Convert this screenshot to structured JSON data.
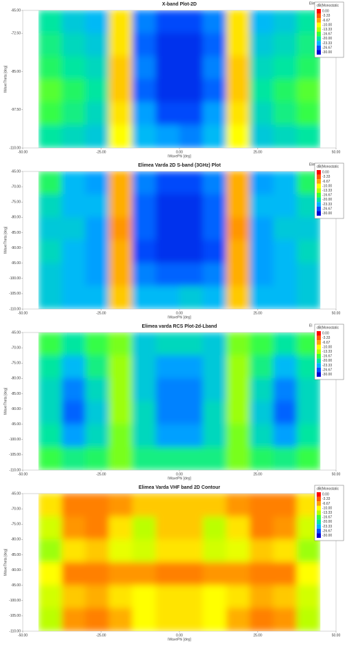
{
  "chart_data": [
    {
      "type": "heatmap",
      "title": "X-band Plot-2D",
      "corner_label": "Elime",
      "xlabel": "IWavePhi [deg]",
      "ylabel": "IWaveTheta [deg]",
      "legend_title": "dB(Monostatic",
      "colorbar_ticks": [
        {
          "value": 0,
          "label": "0.00"
        },
        -3.33,
        -6.67,
        {
          "value": -10,
          "label": "-10.00"
        },
        -13.33,
        -16.67,
        {
          "value": -20,
          "label": "-20.00"
        },
        -23.33,
        -26.67,
        {
          "value": -30,
          "label": "-30.00"
        }
      ],
      "colorbar_colors": [
        "#ff0000",
        "#ff5a00",
        "#ffa500",
        "#ffff00",
        "#b4ff00",
        "#3cff3c",
        "#00e6a0",
        "#00b4ff",
        "#0050ff",
        "#0000d2"
      ],
      "xlim": [
        -50,
        50
      ],
      "ylim": [
        -110,
        -65
      ],
      "xticks": [
        {
          "value": -50,
          "label": "-50.00"
        },
        {
          "value": -25,
          "label": "-25.00"
        },
        {
          "value": 0,
          "label": "0.00"
        },
        {
          "value": 25,
          "label": "25.00"
        },
        {
          "value": 50,
          "label": "50.00"
        }
      ],
      "yticks": [
        {
          "value": -65,
          "label": "-65.00"
        },
        {
          "value": -72.5,
          "label": "-72.50"
        },
        {
          "value": -85,
          "label": "-85.00"
        },
        {
          "value": -97.5,
          "label": "-97.50"
        },
        {
          "value": -110,
          "label": "-110.00"
        }
      ],
      "x": [
        -41.25,
        -33.75,
        -26.25,
        -18.75,
        -11.25,
        -3.75,
        3.75,
        11.25,
        18.75,
        26.25,
        33.75,
        41.25
      ],
      "y": [
        -68.75,
        -76.25,
        -83.75,
        -91.25,
        -98.75,
        -106.25
      ],
      "z": [
        [
          -20,
          -22,
          -23,
          -9,
          -25,
          -27,
          -27,
          -25,
          -9,
          -23,
          -22,
          -20
        ],
        [
          -19,
          -21,
          -22,
          -9,
          -26,
          -28,
          -28,
          -26,
          -9,
          -22,
          -21,
          -19
        ],
        [
          -18,
          -20,
          -21,
          -8,
          -25,
          -28,
          -28,
          -25,
          -8,
          -21,
          -20,
          -18
        ],
        [
          -16,
          -18,
          -20,
          -8,
          -26,
          -28,
          -28,
          -26,
          -8,
          -20,
          -18,
          -16
        ],
        [
          -17,
          -19,
          -21,
          -9,
          -24,
          -27,
          -27,
          -24,
          -9,
          -21,
          -19,
          -17
        ],
        [
          -20,
          -21,
          -22,
          -10,
          -23,
          -24,
          -25,
          -23,
          -10,
          -22,
          -21,
          -20
        ]
      ]
    },
    {
      "type": "heatmap",
      "title": "Elimea Varda 2D S-band (3GHz) Plot",
      "corner_label": "Elimea",
      "xlabel": "IWavePhi [deg]",
      "ylabel": "IWaveTheta [deg]",
      "legend_title": "dB(Monostatic",
      "colorbar_ticks": [
        {
          "value": 0,
          "label": "0.00"
        },
        -3.33,
        -6.67,
        {
          "value": -10,
          "label": "-10.00"
        },
        -13.33,
        -16.67,
        {
          "value": -20,
          "label": "-20.00"
        },
        -23.33,
        -26.67,
        {
          "value": -30,
          "label": "-30.00"
        }
      ],
      "colorbar_colors": [
        "#ff0000",
        "#ff5a00",
        "#ffa500",
        "#ffff00",
        "#b4ff00",
        "#3cff3c",
        "#00e6a0",
        "#00b4ff",
        "#0050ff",
        "#0000d2"
      ],
      "xlim": [
        -50,
        50
      ],
      "ylim": [
        -110,
        -65
      ],
      "xticks": [
        {
          "value": -50,
          "label": "-50.00"
        },
        {
          "value": -25,
          "label": "-25.00"
        },
        {
          "value": 0,
          "label": "0.00"
        },
        {
          "value": 25,
          "label": "25.00"
        },
        {
          "value": 50,
          "label": "50.00"
        }
      ],
      "yticks": [
        {
          "value": -65,
          "label": "-65.00"
        },
        {
          "value": -70,
          "label": "-70.00"
        },
        {
          "value": -75,
          "label": "-75.00"
        },
        {
          "value": -80,
          "label": "-80.00"
        },
        {
          "value": -85,
          "label": "-85.00"
        },
        {
          "value": -90,
          "label": "-90.00"
        },
        {
          "value": -95,
          "label": "-95.00"
        },
        {
          "value": -100,
          "label": "-100.00"
        },
        {
          "value": -105,
          "label": "-105.00"
        },
        {
          "value": -110,
          "label": "-110.00"
        }
      ],
      "x": [
        -41.25,
        -33.75,
        -26.25,
        -18.75,
        -11.25,
        -3.75,
        3.75,
        11.25,
        18.75,
        26.25,
        33.75,
        41.25
      ],
      "y": [
        -68.75,
        -76.25,
        -83.75,
        -91.25,
        -98.75,
        -106.25
      ],
      "z": [
        [
          -18,
          -23,
          -24,
          -7,
          -25,
          -27,
          -27,
          -25,
          -7,
          -24,
          -23,
          -18
        ],
        [
          -21,
          -23,
          -23,
          -7,
          -26,
          -28,
          -28,
          -26,
          -7,
          -23,
          -23,
          -21
        ],
        [
          -22,
          -22,
          -24,
          -6,
          -26,
          -28,
          -28,
          -26,
          -6,
          -24,
          -22,
          -22
        ],
        [
          -21,
          -23,
          -24,
          -7,
          -27,
          -28,
          -28,
          -27,
          -7,
          -24,
          -23,
          -21
        ],
        [
          -22,
          -23,
          -24,
          -7,
          -25,
          -26,
          -26,
          -25,
          -7,
          -24,
          -23,
          -22
        ],
        [
          -22,
          -23,
          -23,
          -8,
          -23,
          -23,
          -22,
          -23,
          -8,
          -23,
          -23,
          -22
        ]
      ]
    },
    {
      "type": "heatmap",
      "title": "Elimea varda RCS Plot-2d-Lband",
      "corner_label": "El",
      "xlabel": "IWavePhi [deg]",
      "ylabel": "IWaveTheta [deg]",
      "legend_title": "dB(Monostatic",
      "colorbar_ticks": [
        {
          "value": 0,
          "label": "0.00"
        },
        -3.33,
        -6.67,
        {
          "value": -10,
          "label": "-10.00"
        },
        -13.33,
        -16.67,
        {
          "value": -20,
          "label": "-20.00"
        },
        -23.33,
        -26.67,
        {
          "value": -30,
          "label": "-30.00"
        }
      ],
      "colorbar_colors": [
        "#ff0000",
        "#ff5a00",
        "#ffa500",
        "#ffff00",
        "#b4ff00",
        "#3cff3c",
        "#00e6a0",
        "#00b4ff",
        "#0050ff",
        "#0000d2"
      ],
      "xlim": [
        -50,
        50
      ],
      "ylim": [
        -110,
        -65
      ],
      "xticks": [
        {
          "value": -50,
          "label": "-50.00"
        },
        {
          "value": -25,
          "label": "-25.00"
        },
        {
          "value": 0,
          "label": "0.00"
        },
        {
          "value": 25,
          "label": "25.00"
        },
        {
          "value": 50,
          "label": "50.00"
        }
      ],
      "yticks": [
        {
          "value": -65,
          "label": "-65.00"
        },
        {
          "value": -70,
          "label": "-70.00"
        },
        {
          "value": -75,
          "label": "-75.00"
        },
        {
          "value": -80,
          "label": "-80.00"
        },
        {
          "value": -85,
          "label": "-85.00"
        },
        {
          "value": -90,
          "label": "-90.00"
        },
        {
          "value": -95,
          "label": "-95.00"
        },
        {
          "value": -100,
          "label": "-100.00"
        },
        {
          "value": -105,
          "label": "-105.00"
        },
        {
          "value": -110,
          "label": "-110.00"
        }
      ],
      "x": [
        -41.25,
        -33.75,
        -26.25,
        -18.75,
        -11.25,
        -3.75,
        3.75,
        11.25,
        18.75,
        26.25,
        33.75,
        41.25
      ],
      "y": [
        -68.75,
        -76.25,
        -83.75,
        -91.25,
        -98.75,
        -106.25
      ],
      "z": [
        [
          -17,
          -20,
          -17,
          -15,
          -22,
          -21,
          -21,
          -22,
          -15,
          -17,
          -20,
          -17
        ],
        [
          -20,
          -23,
          -19,
          -14,
          -22,
          -24,
          -24,
          -22,
          -14,
          -19,
          -23,
          -20
        ],
        [
          -21,
          -25,
          -21,
          -14,
          -22,
          -25,
          -25,
          -22,
          -14,
          -21,
          -25,
          -21
        ],
        [
          -21,
          -26,
          -22,
          -14,
          -21,
          -25,
          -25,
          -21,
          -14,
          -22,
          -26,
          -21
        ],
        [
          -20,
          -24,
          -21,
          -15,
          -21,
          -24,
          -24,
          -21,
          -15,
          -21,
          -24,
          -20
        ],
        [
          -17,
          -19,
          -18,
          -15,
          -19,
          -19,
          -19,
          -19,
          -15,
          -18,
          -19,
          -17
        ]
      ]
    },
    {
      "type": "heatmap",
      "title": "Elimea Varda VHF band 2D Contour",
      "xlabel": "IWavePhi [deg]",
      "ylabel": "IWaveTheta [deg]",
      "legend_title": "dB(Monostatic",
      "colorbar_ticks": [
        {
          "value": 0,
          "label": "0.00"
        },
        -3.33,
        -6.67,
        {
          "value": -10,
          "label": "-10.00"
        },
        -13.33,
        -16.67,
        {
          "value": -20,
          "label": "-20.00"
        },
        -23.33,
        -26.67,
        {
          "value": -30,
          "label": "-30.00"
        }
      ],
      "colorbar_colors": [
        "#ff0000",
        "#ff5a00",
        "#ffa500",
        "#ffff00",
        "#b4ff00",
        "#3cff3c",
        "#00e6a0",
        "#00b4ff",
        "#0050ff",
        "#0000d2"
      ],
      "xlim": [
        -50,
        50
      ],
      "ylim": [
        -110,
        -65
      ],
      "xticks": [
        {
          "value": -50,
          "label": "-50.00"
        },
        {
          "value": -25,
          "label": "-25.00"
        },
        {
          "value": 0,
          "label": "0.00"
        },
        {
          "value": 25,
          "label": "25.00"
        },
        {
          "value": 50,
          "label": "50.00"
        }
      ],
      "yticks": [
        {
          "value": -65,
          "label": "-65.00"
        },
        {
          "value": -70,
          "label": "-70.00"
        },
        {
          "value": -75,
          "label": "-75.00"
        },
        {
          "value": -80,
          "label": "-80.00"
        },
        {
          "value": -85,
          "label": "-85.00"
        },
        {
          "value": -90,
          "label": "-90.00"
        },
        {
          "value": -95,
          "label": "-95.00"
        },
        {
          "value": -100,
          "label": "-100.00"
        },
        {
          "value": -105,
          "label": "-105.00"
        },
        {
          "value": -110,
          "label": "-110.00"
        }
      ],
      "x": [
        -41.25,
        -33.75,
        -26.25,
        -18.75,
        -11.25,
        -3.75,
        3.75,
        11.25,
        18.75,
        26.25,
        33.75,
        41.25
      ],
      "y": [
        -68.75,
        -76.25,
        -83.75,
        -91.25,
        -98.75,
        -106.25
      ],
      "z": [
        [
          -9,
          -5,
          -5,
          -6,
          -8,
          -8,
          -8,
          -8,
          -6,
          -5,
          -5,
          -9
        ],
        [
          -12,
          -6,
          -5,
          -9,
          -13,
          -8,
          -8,
          -13,
          -9,
          -5,
          -6,
          -12
        ],
        [
          -14,
          -9,
          -8,
          -11,
          -12,
          -9,
          -9,
          -12,
          -11,
          -8,
          -9,
          -14
        ],
        [
          -10,
          -5,
          -5,
          -6,
          -6,
          -5,
          -5,
          -6,
          -6,
          -5,
          -5,
          -10
        ],
        [
          -12,
          -8,
          -7,
          -9,
          -10,
          -9,
          -9,
          -10,
          -9,
          -7,
          -8,
          -12
        ],
        [
          -13,
          -6,
          -5,
          -7,
          -10,
          -9,
          -9,
          -10,
          -7,
          -5,
          -6,
          -13
        ]
      ]
    }
  ]
}
